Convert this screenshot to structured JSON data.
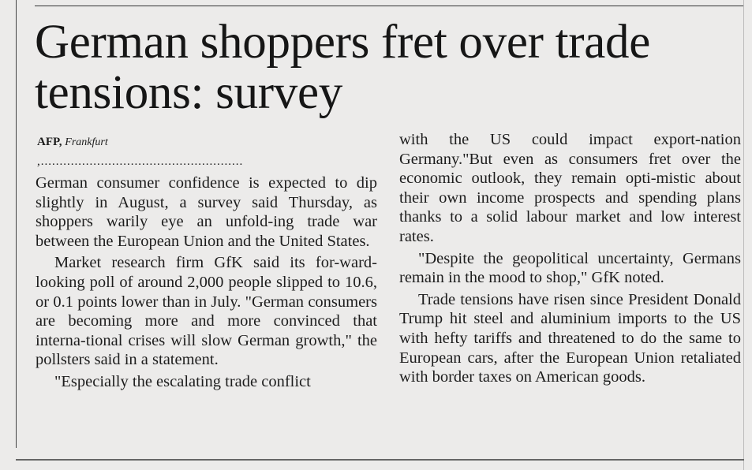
{
  "article": {
    "headline": "German shoppers fret over trade tensions: survey",
    "byline_source": "AFP,",
    "byline_location": "Frankfurt",
    "separator": ",......................................................",
    "col1": [
      "German consumer confidence is expected to dip slightly in August, a survey said Thursday, as shoppers warily eye an unfold-ing trade war between the European Union and the United States.",
      "Market research firm GfK said its for-ward-looking poll of around 2,000 people slipped to 10.6, or 0.1 points lower than in July. \"German consumers are becoming more and more convinced that interna-tional crises will slow German growth,\" the pollsters said in a statement.",
      "\"Especially the escalating trade conflict"
    ],
    "col2": [
      "with the US could impact export-nation Germany.\"But even as consumers fret over the economic outlook, they remain opti-mistic about their own income prospects and spending plans thanks to a solid labour market and low interest rates.",
      "\"Despite the geopolitical uncertainty, Germans remain in the mood to shop,\" GfK noted.",
      "Trade tensions have risen since President Donald Trump hit steel and aluminium imports to the US with hefty tariffs and threatened to do the same to European cars, after the European Union retaliated with border taxes on American goods."
    ]
  }
}
